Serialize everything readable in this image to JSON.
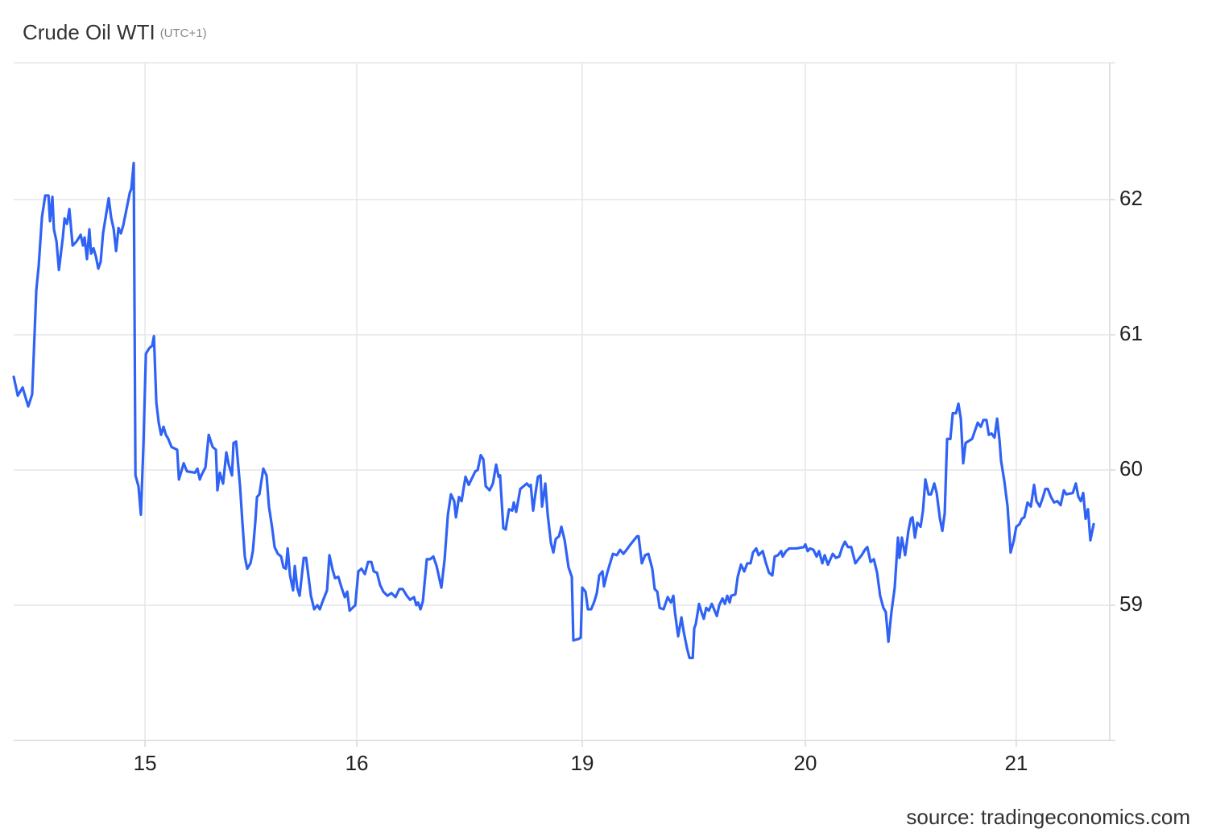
{
  "chart_data": {
    "type": "line",
    "title": "Crude Oil WTI",
    "subtitle": "(UTC+1)",
    "source": "source: tradingeconomics.com",
    "color": "#2f62f5",
    "grid": true,
    "y_axis_side": "right",
    "xlim": [
      -0.604,
      4.437
    ],
    "xticks": [
      {
        "value": 0,
        "label": "15"
      },
      {
        "value": 0.974,
        "label": "16"
      },
      {
        "value": 2.011,
        "label": "19"
      },
      {
        "value": 3.037,
        "label": "20"
      },
      {
        "value": 4.007,
        "label": "21"
      }
    ],
    "ylim": [
      58,
      63
    ],
    "yticks": [
      59,
      60,
      61,
      62
    ],
    "x": [
      -0.604,
      -0.585,
      -0.563,
      -0.537,
      -0.519,
      -0.5,
      -0.489,
      -0.474,
      -0.459,
      -0.444,
      -0.437,
      -0.426,
      -0.419,
      -0.407,
      -0.396,
      -0.378,
      -0.37,
      -0.359,
      -0.348,
      -0.333,
      -0.315,
      -0.296,
      -0.285,
      -0.278,
      -0.267,
      -0.256,
      -0.248,
      -0.237,
      -0.226,
      -0.215,
      -0.204,
      -0.193,
      -0.181,
      -0.167,
      -0.156,
      -0.144,
      -0.133,
      -0.122,
      -0.111,
      -0.1,
      -0.085,
      -0.07,
      -0.063,
      -0.052,
      -0.044,
      -0.03,
      -0.019,
      -0.007,
      0.004,
      0.019,
      0.033,
      0.041,
      0.052,
      0.063,
      0.074,
      0.085,
      0.096,
      0.107,
      0.122,
      0.148,
      0.156,
      0.167,
      0.178,
      0.193,
      0.23,
      0.241,
      0.252,
      0.259,
      0.278,
      0.293,
      0.311,
      0.326,
      0.333,
      0.344,
      0.359,
      0.374,
      0.385,
      0.4,
      0.407,
      0.419,
      0.437,
      0.448,
      0.459,
      0.47,
      0.485,
      0.496,
      0.507,
      0.515,
      0.526,
      0.544,
      0.559,
      0.57,
      0.585,
      0.596,
      0.611,
      0.626,
      0.637,
      0.648,
      0.656,
      0.667,
      0.681,
      0.689,
      0.7,
      0.711,
      0.73,
      0.741,
      0.763,
      0.778,
      0.793,
      0.804,
      0.815,
      0.837,
      0.848,
      0.863,
      0.874,
      0.889,
      0.904,
      0.919,
      0.93,
      0.941,
      0.967,
      0.981,
      0.996,
      1.011,
      1.026,
      1.041,
      1.052,
      1.067,
      1.081,
      1.096,
      1.115,
      1.133,
      1.152,
      1.17,
      1.185,
      1.204,
      1.219,
      1.237,
      1.248,
      1.256,
      1.267,
      1.278,
      1.296,
      1.311,
      1.326,
      1.341,
      1.363,
      1.378,
      1.393,
      1.407,
      1.422,
      1.43,
      1.444,
      1.456,
      1.474,
      1.489,
      1.519,
      1.53,
      1.544,
      1.556,
      1.567,
      1.585,
      1.6,
      1.615,
      1.626,
      1.633,
      1.648,
      1.659,
      1.674,
      1.689,
      1.696,
      1.707,
      1.726,
      1.756,
      1.767,
      1.774,
      1.785,
      1.796,
      1.807,
      1.819,
      1.826,
      1.841,
      1.852,
      1.867,
      1.878,
      1.889,
      1.904,
      1.915,
      1.93,
      1.948,
      1.963,
      1.97,
      1.993,
      2.004,
      2.011,
      2.026,
      2.037,
      2.052,
      2.067,
      2.078,
      2.089,
      2.104,
      2.111,
      2.126,
      2.137,
      2.152,
      2.17,
      2.185,
      2.2,
      2.215,
      2.233,
      2.263,
      2.27,
      2.285,
      2.3,
      2.315,
      2.333,
      2.344,
      2.356,
      2.367,
      2.385,
      2.404,
      2.419,
      2.43,
      2.437,
      2.452,
      2.467,
      2.478,
      2.493,
      2.504,
      2.519,
      2.526,
      2.533,
      2.548,
      2.559,
      2.57,
      2.581,
      2.593,
      2.607,
      2.63,
      2.641,
      2.656,
      2.667,
      2.678,
      2.689,
      2.696,
      2.715,
      2.726,
      2.741,
      2.756,
      2.77,
      2.785,
      2.796,
      2.811,
      2.822,
      2.841,
      2.856,
      2.87,
      2.885,
      2.896,
      2.911,
      2.926,
      2.933,
      2.948,
      2.963,
      2.996,
      3.03,
      3.037,
      3.048,
      3.059,
      3.074,
      3.089,
      3.1,
      3.115,
      3.126,
      3.141,
      3.152,
      3.163,
      3.178,
      3.193,
      3.207,
      3.219,
      3.233,
      3.248,
      3.267,
      3.281,
      3.296,
      3.311,
      3.322,
      3.337,
      3.352,
      3.367,
      3.381,
      3.396,
      3.407,
      3.419,
      3.433,
      3.448,
      3.463,
      3.47,
      3.481,
      3.496,
      3.511,
      3.522,
      3.53,
      3.541,
      3.552,
      3.567,
      3.578,
      3.589,
      3.604,
      3.615,
      3.63,
      3.641,
      3.656,
      3.667,
      3.678,
      3.689,
      3.704,
      3.715,
      3.73,
      3.741,
      3.752,
      3.763,
      3.774,
      3.804,
      3.819,
      3.83,
      3.844,
      3.856,
      3.87,
      3.881,
      3.893,
      3.907,
      3.919,
      3.93,
      3.937,
      3.952,
      3.967,
      3.981,
      3.996,
      4.007,
      4.022,
      4.033,
      4.044,
      4.059,
      4.074,
      4.089,
      4.1,
      4.115,
      4.13,
      4.141,
      4.152,
      4.167,
      4.181,
      4.196,
      4.211,
      4.226,
      4.237,
      4.267,
      4.281,
      4.293,
      4.304,
      4.315,
      4.326,
      4.337,
      4.348,
      4.363
    ],
    "values": [
      60.69,
      60.55,
      60.61,
      60.47,
      60.56,
      61.33,
      61.51,
      61.87,
      62.03,
      62.03,
      61.84,
      62.02,
      61.78,
      61.69,
      61.48,
      61.72,
      61.86,
      61.82,
      61.93,
      61.66,
      61.69,
      61.74,
      61.66,
      61.72,
      61.56,
      61.78,
      61.6,
      61.64,
      61.58,
      61.49,
      61.54,
      61.75,
      61.87,
      62.01,
      61.87,
      61.78,
      61.62,
      61.79,
      61.75,
      61.81,
      61.93,
      62.05,
      62.08,
      62.27,
      59.96,
      59.88,
      59.67,
      60.2,
      60.86,
      60.9,
      60.92,
      60.99,
      60.5,
      60.35,
      60.26,
      60.32,
      60.26,
      60.23,
      60.17,
      60.15,
      59.93,
      59.99,
      60.05,
      59.99,
      59.98,
      60.01,
      59.93,
      59.96,
      60.02,
      60.26,
      60.17,
      60.15,
      59.85,
      59.98,
      59.9,
      60.13,
      60.04,
      59.96,
      60.2,
      60.21,
      59.88,
      59.61,
      59.36,
      59.27,
      59.31,
      59.4,
      59.61,
      59.8,
      59.82,
      60.01,
      59.96,
      59.73,
      59.57,
      59.43,
      59.38,
      59.36,
      59.28,
      59.27,
      59.42,
      59.22,
      59.11,
      59.29,
      59.13,
      59.07,
      59.35,
      59.35,
      59.07,
      58.97,
      59.0,
      58.97,
      59.02,
      59.11,
      59.37,
      59.26,
      59.2,
      59.21,
      59.13,
      59.06,
      59.1,
      58.96,
      59.0,
      59.25,
      59.27,
      59.23,
      59.32,
      59.32,
      59.25,
      59.24,
      59.15,
      59.1,
      59.07,
      59.09,
      59.06,
      59.12,
      59.12,
      59.07,
      59.04,
      59.06,
      59.0,
      59.02,
      58.97,
      59.03,
      59.34,
      59.34,
      59.36,
      59.29,
      59.13,
      59.34,
      59.67,
      59.82,
      59.77,
      59.65,
      59.8,
      59.77,
      59.95,
      59.89,
      59.99,
      60.0,
      60.11,
      60.08,
      59.88,
      59.85,
      59.9,
      60.04,
      59.95,
      59.96,
      59.57,
      59.56,
      59.71,
      59.7,
      59.76,
      59.69,
      59.86,
      59.9,
      59.88,
      59.89,
      59.7,
      59.83,
      59.95,
      59.96,
      59.73,
      59.9,
      59.67,
      59.46,
      59.39,
      59.49,
      59.51,
      59.58,
      59.48,
      59.28,
      59.21,
      58.74,
      58.75,
      58.76,
      59.13,
      59.1,
      58.97,
      58.97,
      59.03,
      59.09,
      59.22,
      59.25,
      59.14,
      59.24,
      59.3,
      59.38,
      59.37,
      59.41,
      59.38,
      59.41,
      59.45,
      59.51,
      59.51,
      59.31,
      59.37,
      59.38,
      59.27,
      59.12,
      59.1,
      58.98,
      58.97,
      59.06,
      59.02,
      59.07,
      58.95,
      58.77,
      58.91,
      58.8,
      58.68,
      58.61,
      58.61,
      58.83,
      58.86,
      59.01,
      58.95,
      58.9,
      58.98,
      58.96,
      59.01,
      58.92,
      59.0,
      59.05,
      59.01,
      59.07,
      59.02,
      59.07,
      59.08,
      59.21,
      59.3,
      59.25,
      59.31,
      59.31,
      59.39,
      59.42,
      59.37,
      59.4,
      59.31,
      59.24,
      59.22,
      59.36,
      59.37,
      59.4,
      59.36,
      59.4,
      59.42,
      59.42,
      59.43,
      59.45,
      59.4,
      59.42,
      59.41,
      59.36,
      59.4,
      59.31,
      59.37,
      59.3,
      59.34,
      59.38,
      59.35,
      59.36,
      59.43,
      59.47,
      59.43,
      59.43,
      59.31,
      59.34,
      59.37,
      59.41,
      59.43,
      59.32,
      59.34,
      59.24,
      59.07,
      58.98,
      58.95,
      58.73,
      58.95,
      59.13,
      59.5,
      59.35,
      59.5,
      59.37,
      59.55,
      59.64,
      59.65,
      59.5,
      59.61,
      59.58,
      59.7,
      59.93,
      59.82,
      59.82,
      59.9,
      59.83,
      59.64,
      59.55,
      59.68,
      60.23,
      60.23,
      60.42,
      60.42,
      60.49,
      60.38,
      60.05,
      60.2,
      60.23,
      60.3,
      60.35,
      60.32,
      60.37,
      60.37,
      60.26,
      60.27,
      60.24,
      60.38,
      60.22,
      60.07,
      59.92,
      59.73,
      59.39,
      59.48,
      59.58,
      59.6,
      59.64,
      59.65,
      59.76,
      59.73,
      59.89,
      59.77,
      59.73,
      59.8,
      59.86,
      59.86,
      59.8,
      59.76,
      59.77,
      59.74,
      59.85,
      59.82,
      59.83,
      59.9,
      59.8,
      59.77,
      59.83,
      59.64,
      59.71,
      59.48,
      59.6
    ]
  }
}
